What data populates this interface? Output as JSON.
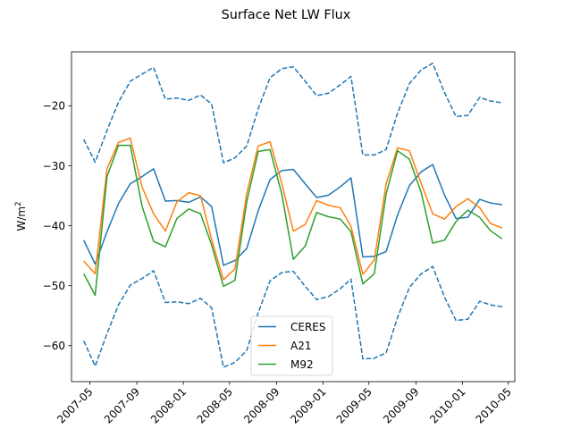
{
  "chart_data": {
    "type": "line",
    "title": "Surface Net LW Flux",
    "ylabel_base": "W/m",
    "ylabel_sup": "2",
    "xlabel": "",
    "x_ticks": [
      "2007-05",
      "2007-09",
      "2008-01",
      "2008-05",
      "2008-09",
      "2009-01",
      "2009-05",
      "2009-09",
      "2010-01",
      "2010-05"
    ],
    "y_ticks": [
      -60,
      -50,
      -40,
      -30,
      -20
    ],
    "ylim": [
      -66,
      -11
    ],
    "xlim": [
      "2007-03-14",
      "2010-05-18"
    ],
    "grid": false,
    "legend_position": "lower center",
    "x": [
      "2007-04-15",
      "2007-05-15",
      "2007-06-15",
      "2007-07-15",
      "2007-08-15",
      "2007-09-15",
      "2007-10-15",
      "2007-11-15",
      "2007-12-15",
      "2008-01-15",
      "2008-02-15",
      "2008-03-15",
      "2008-04-15",
      "2008-05-15",
      "2008-06-15",
      "2008-07-15",
      "2008-08-15",
      "2008-09-15",
      "2008-10-15",
      "2008-11-15",
      "2008-12-15",
      "2009-01-15",
      "2009-02-15",
      "2009-03-15",
      "2009-04-15",
      "2009-05-15",
      "2009-06-15",
      "2009-07-15",
      "2009-08-15",
      "2009-09-15",
      "2009-10-15",
      "2009-11-15",
      "2009-12-15",
      "2010-01-15",
      "2010-02-15",
      "2010-03-15",
      "2010-04-15"
    ],
    "series": [
      {
        "name": "CERES",
        "color": "#1f77b4",
        "values": [
          -42.4,
          -46.4,
          -41.0,
          -36.3,
          -33.0,
          -31.8,
          -30.5,
          -35.9,
          -35.8,
          -36.1,
          -35.2,
          -36.8,
          -46.6,
          -45.8,
          -43.8,
          -37.5,
          -32.3,
          -30.8,
          -30.6,
          -33.0,
          -35.3,
          -34.9,
          -33.5,
          -32.0,
          -45.2,
          -45.1,
          -44.3,
          -38.2,
          -33.3,
          -31.0,
          -29.8,
          -34.9,
          -38.8,
          -38.6,
          -35.6,
          -36.2,
          -36.5
        ]
      },
      {
        "name": "A21",
        "color": "#ff7f0e",
        "values": [
          -45.9,
          -48.0,
          -30.5,
          -26.1,
          -25.4,
          -33.6,
          -38.0,
          -40.9,
          -36.0,
          -34.5,
          -35.0,
          -42.3,
          -49.0,
          -47.2,
          -34.6,
          -26.7,
          -26.0,
          -33.0,
          -40.9,
          -39.8,
          -35.8,
          -36.6,
          -37.0,
          -40.1,
          -48.1,
          -45.7,
          -33.0,
          -27.0,
          -27.5,
          -33.0,
          -38.0,
          -38.9,
          -36.8,
          -35.5,
          -37.0,
          -39.6,
          -40.4
        ]
      },
      {
        "name": "M92",
        "color": "#2ca02c",
        "values": [
          -48.0,
          -51.6,
          -31.8,
          -26.6,
          -26.6,
          -36.8,
          -42.6,
          -43.5,
          -38.8,
          -37.2,
          -38.0,
          -43.2,
          -50.1,
          -49.1,
          -36.0,
          -27.6,
          -27.3,
          -34.8,
          -45.6,
          -43.4,
          -37.8,
          -38.5,
          -38.9,
          -41.0,
          -49.7,
          -48.0,
          -34.7,
          -27.5,
          -28.9,
          -34.5,
          -42.9,
          -42.4,
          -39.3,
          -37.4,
          -38.6,
          -40.8,
          -42.2
        ]
      },
      {
        "name": "",
        "color": "#1f77b4",
        "dashed": true,
        "values": [
          -25.6,
          -29.4,
          -24.1,
          -19.4,
          -15.9,
          -14.7,
          -13.6,
          -18.9,
          -18.7,
          -19.1,
          -18.2,
          -19.7,
          -29.5,
          -28.7,
          -26.7,
          -20.5,
          -15.3,
          -13.8,
          -13.5,
          -15.9,
          -18.3,
          -17.9,
          -16.5,
          -15.1,
          -28.2,
          -28.2,
          -27.3,
          -21.2,
          -16.3,
          -14.0,
          -12.9,
          -17.8,
          -21.8,
          -21.6,
          -18.6,
          -19.2,
          -19.5
        ]
      },
      {
        "name": "",
        "color": "#1f77b4",
        "dashed": true,
        "values": [
          -59.2,
          -63.4,
          -58.0,
          -53.2,
          -49.9,
          -48.8,
          -47.5,
          -52.8,
          -52.7,
          -53.0,
          -52.1,
          -53.7,
          -63.6,
          -62.8,
          -60.8,
          -54.5,
          -49.2,
          -47.8,
          -47.6,
          -50.1,
          -52.3,
          -51.8,
          -50.5,
          -48.9,
          -62.2,
          -62.1,
          -61.2,
          -55.3,
          -50.3,
          -48.0,
          -46.8,
          -51.9,
          -55.8,
          -55.6,
          -52.6,
          -53.2,
          -53.5
        ]
      }
    ]
  }
}
